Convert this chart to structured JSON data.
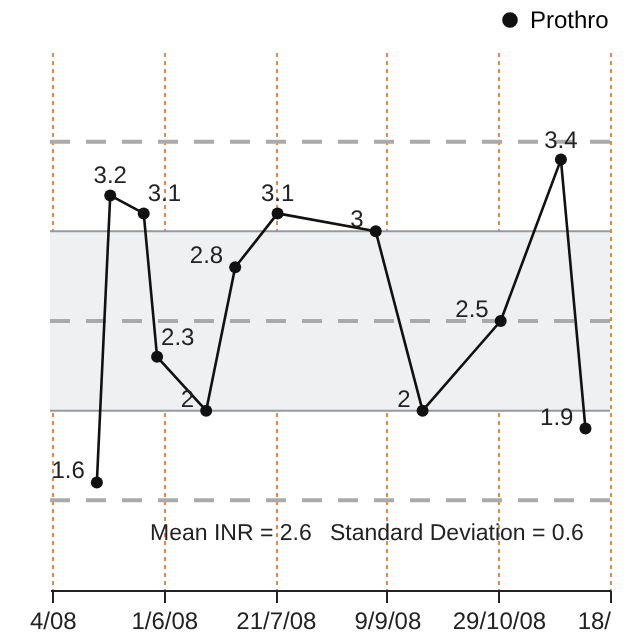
{
  "chart_data": {
    "type": "line",
    "x": [
      "2008-05-02",
      "2008-05-08",
      "2008-05-23",
      "2008-05-29",
      "2008-06-20",
      "2008-07-03",
      "2008-07-22",
      "2008-09-04",
      "2008-09-25",
      "2008-10-30",
      "2008-11-26",
      "2008-12-07"
    ],
    "series": [
      {
        "name": "Prothro",
        "color": "#111111",
        "values": [
          1.6,
          3.2,
          3.1,
          2.3,
          2,
          2.8,
          3.1,
          3,
          2,
          2.5,
          3.4,
          1.9
        ]
      }
    ],
    "xlim": [
      "2008-04-11",
      "2008-12-18"
    ],
    "xticks": [
      {
        "value": "2008-04-12",
        "label": "4/08"
      },
      {
        "value": "2008-06-01",
        "label": "1/6/08"
      },
      {
        "value": "2008-07-21",
        "label": "21/7/08"
      },
      {
        "value": "2008-09-09",
        "label": "9/9/08"
      },
      {
        "value": "2008-10-29",
        "label": "29/10/08"
      },
      {
        "value": "2008-12-18",
        "label": "18/"
      }
    ],
    "ylim": [
      1,
      4
    ],
    "tick_labels": "x",
    "grid": "x",
    "marker": "circle",
    "line_style": "solid",
    "data_labels": true,
    "legend": "top right",
    "bands": [
      {
        "axis": "y",
        "from": 2,
        "to": 3,
        "color": "#eef0f2"
      }
    ],
    "ref_lines": [
      {
        "axis": "y",
        "value": 2,
        "color": "#999999",
        "line_style": "solid"
      },
      {
        "axis": "y",
        "value": 3,
        "color": "#999999",
        "line_style": "solid"
      },
      {
        "axis": "y",
        "value": 1.5,
        "color": "#aaaaaa",
        "line_style": "dashed"
      },
      {
        "axis": "y",
        "value": 2.5,
        "color": "#aaaaaa",
        "line_style": "dashed"
      },
      {
        "axis": "y",
        "value": 3.5,
        "color": "#aaaaaa",
        "line_style": "dashed"
      }
    ],
    "annotations": [
      "Mean INR = 2.6",
      "Standard Deviation = 0.6"
    ]
  }
}
